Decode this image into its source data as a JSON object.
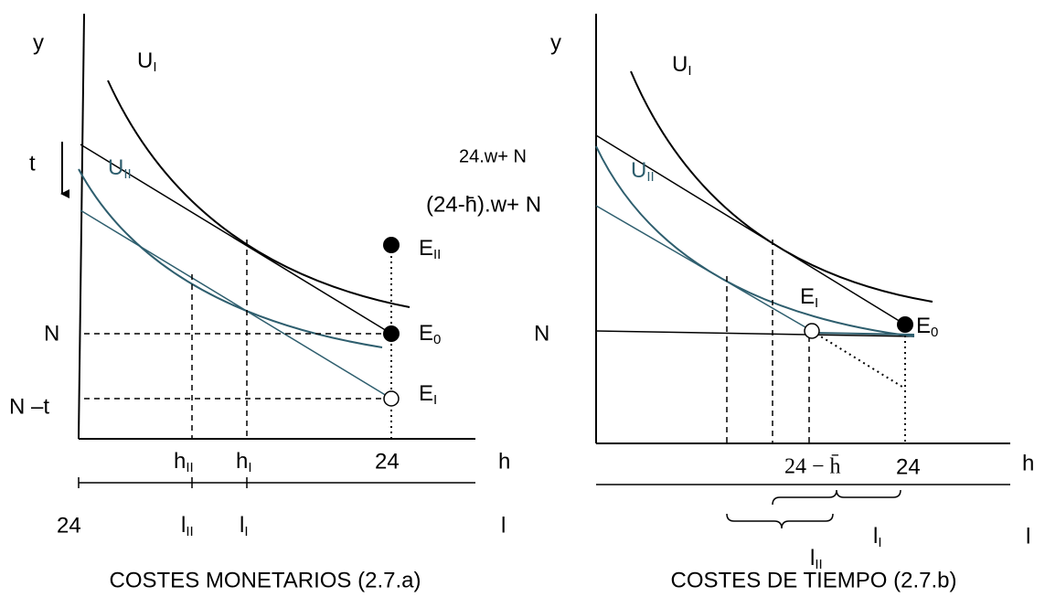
{
  "left": {
    "y_axis": "y",
    "u1": {
      "text": "U",
      "sub": "I"
    },
    "t": "t",
    "u2": {
      "text": "U",
      "sub": "II"
    },
    "e2": {
      "text": "E",
      "sub": "II"
    },
    "n": "N",
    "e0": {
      "text": "E",
      "sub": "0"
    },
    "nt": "N –t",
    "e1": {
      "text": "E",
      "sub": "I"
    },
    "h2": {
      "text": "h",
      "sub": "II"
    },
    "h1": {
      "text": "h",
      "sub": "I"
    },
    "h24": "24",
    "h_axis": "h",
    "l24": "24",
    "l2": {
      "text": "l",
      "sub": "II"
    },
    "l1": {
      "text": "l",
      "sub": "I"
    },
    "l_axis": "l",
    "caption": "COSTES MONETARIOS (2.7.a)"
  },
  "right": {
    "y_axis": "y",
    "u1": {
      "text": "U",
      "sub": "I"
    },
    "top": "24.w+ N",
    "mid": "(24-h̄).w+ N",
    "u2": {
      "text": "U",
      "sub": "II"
    },
    "e1": {
      "text": "E",
      "sub": "I"
    },
    "n": "N",
    "e0": {
      "text": "E",
      "sub": "0"
    },
    "hbar": "24 − h̄",
    "h24": "24",
    "h_axis": "h",
    "l1": {
      "text": "l",
      "sub": "I"
    },
    "l2": {
      "text": "l",
      "sub": "II"
    },
    "l_axis": "l",
    "caption": "COSTES DE TIEMPO (2.7.b)"
  }
}
